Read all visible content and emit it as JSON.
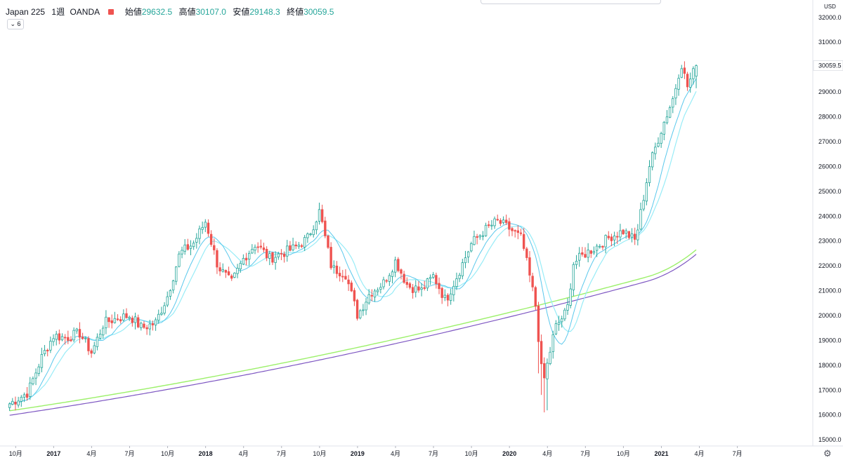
{
  "header": {
    "symbol": "Japan 225",
    "timeframe": "1週",
    "broker": "OANDA",
    "ohlc": [
      {
        "k": "始値",
        "v": "29632.5"
      },
      {
        "k": "高値",
        "v": "30107.0"
      },
      {
        "k": "安値",
        "v": "29148.3"
      },
      {
        "k": "終値",
        "v": "30059.5"
      }
    ],
    "indicator_count": "6"
  },
  "colors": {
    "up": "#26a69a",
    "down": "#ef5350",
    "ma_fast": "#5ac8ec",
    "ma_mid": "#98ecf7",
    "ma_200": "#9cf06a",
    "ma_long": "#7e57c2",
    "last_tag": "#ffffff"
  },
  "chart_data": {
    "type": "candlestick",
    "title": "Japan 225 · 1週 · OANDA",
    "y_unit": "USD",
    "ylim": [
      14750,
      32700
    ],
    "y_ticks": [
      "32000.0",
      "31000.0",
      "30000.0",
      "29000.0",
      "28000.0",
      "27000.0",
      "26000.0",
      "25000.0",
      "24000.0",
      "23000.0",
      "22000.0",
      "21000.0",
      "20000.0",
      "19000.0",
      "18000.0",
      "17000.0",
      "16000.0",
      "15000.0"
    ],
    "last_price": "30059.5",
    "x_ticks": [
      "10月",
      "2017",
      "4月",
      "7月",
      "10月",
      "2018",
      "4月",
      "7月",
      "10月",
      "2019",
      "4月",
      "7月",
      "10月",
      "2020",
      "4月",
      "7月",
      "10月",
      "2021",
      "4月",
      "7月"
    ],
    "x_range": "2016-09 to 2021-10",
    "last_candle": {
      "open": 29632.5,
      "high": 30107.0,
      "low": 29148.3,
      "close": 30059.5
    },
    "close_anchors": [
      [
        2016.71,
        16450
      ],
      [
        2016.83,
        16900
      ],
      [
        2016.92,
        18300
      ],
      [
        2017.0,
        19200
      ],
      [
        2017.08,
        19100
      ],
      [
        2017.17,
        19300
      ],
      [
        2017.25,
        18500
      ],
      [
        2017.33,
        19700
      ],
      [
        2017.42,
        19900
      ],
      [
        2017.5,
        20000
      ],
      [
        2017.58,
        19500
      ],
      [
        2017.67,
        19700
      ],
      [
        2017.75,
        20800
      ],
      [
        2017.83,
        22500
      ],
      [
        2017.92,
        22900
      ],
      [
        2018.0,
        23800
      ],
      [
        2018.08,
        22000
      ],
      [
        2018.17,
        21300
      ],
      [
        2018.25,
        22300
      ],
      [
        2018.33,
        22900
      ],
      [
        2018.42,
        22300
      ],
      [
        2018.5,
        22500
      ],
      [
        2018.58,
        22700
      ],
      [
        2018.67,
        23100
      ],
      [
        2018.75,
        24200
      ],
      [
        2018.83,
        21900
      ],
      [
        2018.92,
        21700
      ],
      [
        2019.0,
        20000
      ],
      [
        2019.08,
        20900
      ],
      [
        2019.17,
        21300
      ],
      [
        2019.25,
        22200
      ],
      [
        2019.33,
        21200
      ],
      [
        2019.42,
        21000
      ],
      [
        2019.5,
        21600
      ],
      [
        2019.58,
        20600
      ],
      [
        2019.67,
        21800
      ],
      [
        2019.75,
        22900
      ],
      [
        2019.83,
        23400
      ],
      [
        2019.92,
        23800
      ],
      [
        2020.0,
        23500
      ],
      [
        2020.08,
        23100
      ],
      [
        2020.17,
        20500
      ],
      [
        2020.22,
        17200
      ],
      [
        2020.3,
        19500
      ],
      [
        2020.38,
        20200
      ],
      [
        2020.42,
        22100
      ],
      [
        2020.5,
        22500
      ],
      [
        2020.58,
        22800
      ],
      [
        2020.67,
        23200
      ],
      [
        2020.75,
        23400
      ],
      [
        2020.83,
        23000
      ],
      [
        2020.92,
        26000
      ],
      [
        2021.0,
        27500
      ],
      [
        2021.08,
        28800
      ],
      [
        2021.13,
        30200
      ],
      [
        2021.17,
        29200
      ],
      [
        2021.23,
        30059.5
      ]
    ],
    "series": [
      {
        "name": "",
        "kind": "moving average (fast)",
        "color": "#5ac8ec"
      },
      {
        "name": "",
        "kind": "moving average (medium)",
        "color": "#98ecf7"
      },
      {
        "name": "",
        "kind": "moving average (200)",
        "color": "#9cf06a"
      },
      {
        "name": "",
        "kind": "moving average (long)",
        "color": "#7e57c2"
      }
    ],
    "grid": false
  }
}
